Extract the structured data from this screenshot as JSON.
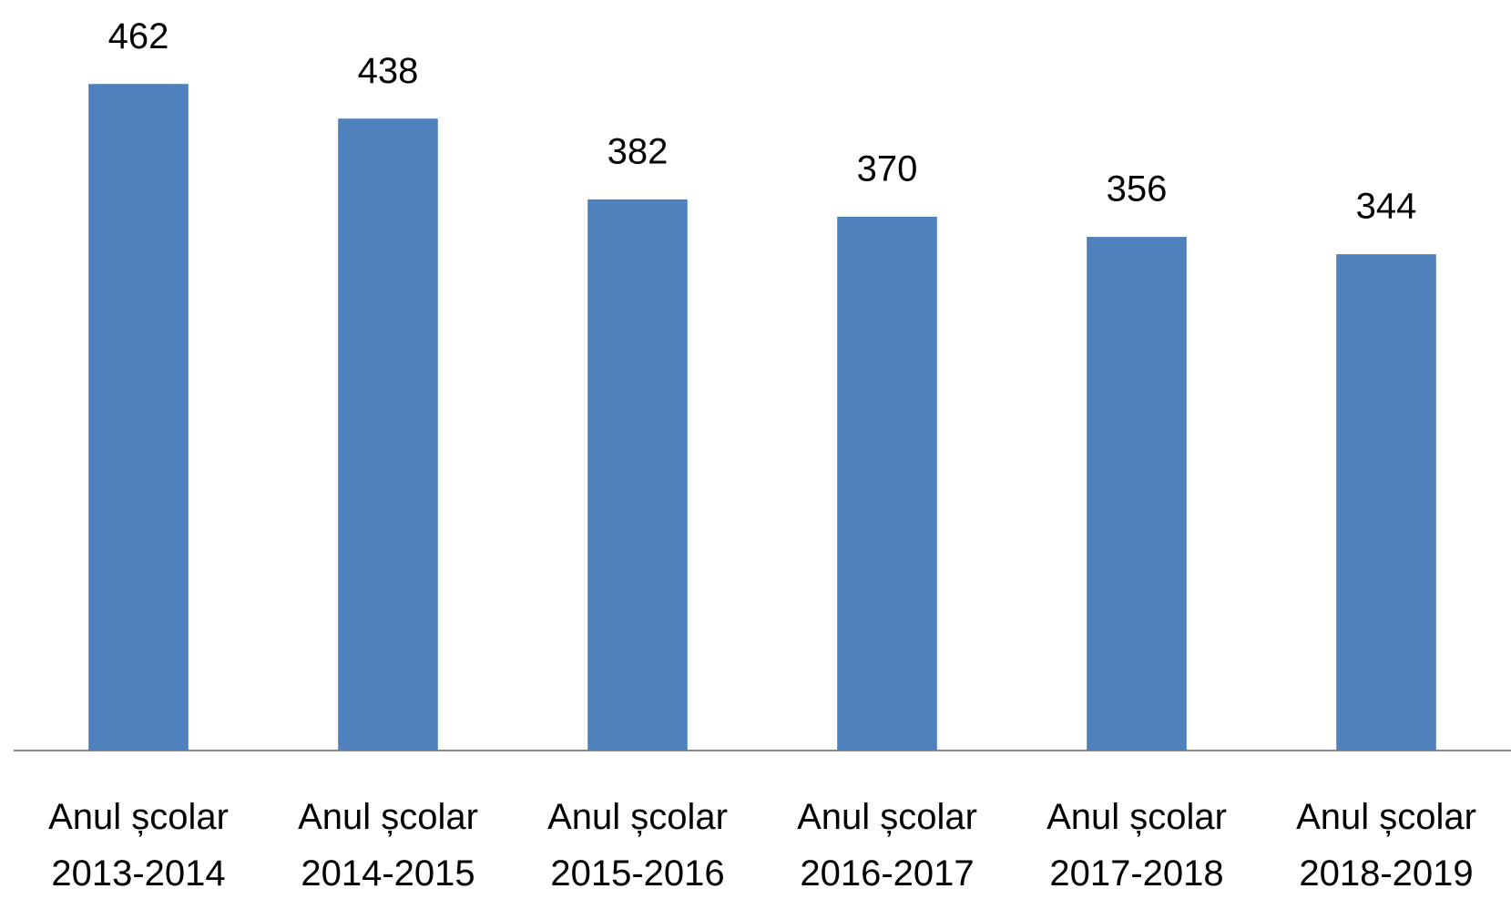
{
  "chart_data": {
    "type": "bar",
    "categories": [
      "Anul școlar 2013-2014",
      "Anul școlar 2014-2015",
      "Anul școlar 2015-2016",
      "Anul școlar 2016-2017",
      "Anul școlar 2017-2018",
      "Anul școlar 2018-2019"
    ],
    "values": [
      462,
      438,
      382,
      370,
      356,
      344
    ],
    "color": "#4f81bd",
    "ylim": [
      0,
      500
    ]
  }
}
